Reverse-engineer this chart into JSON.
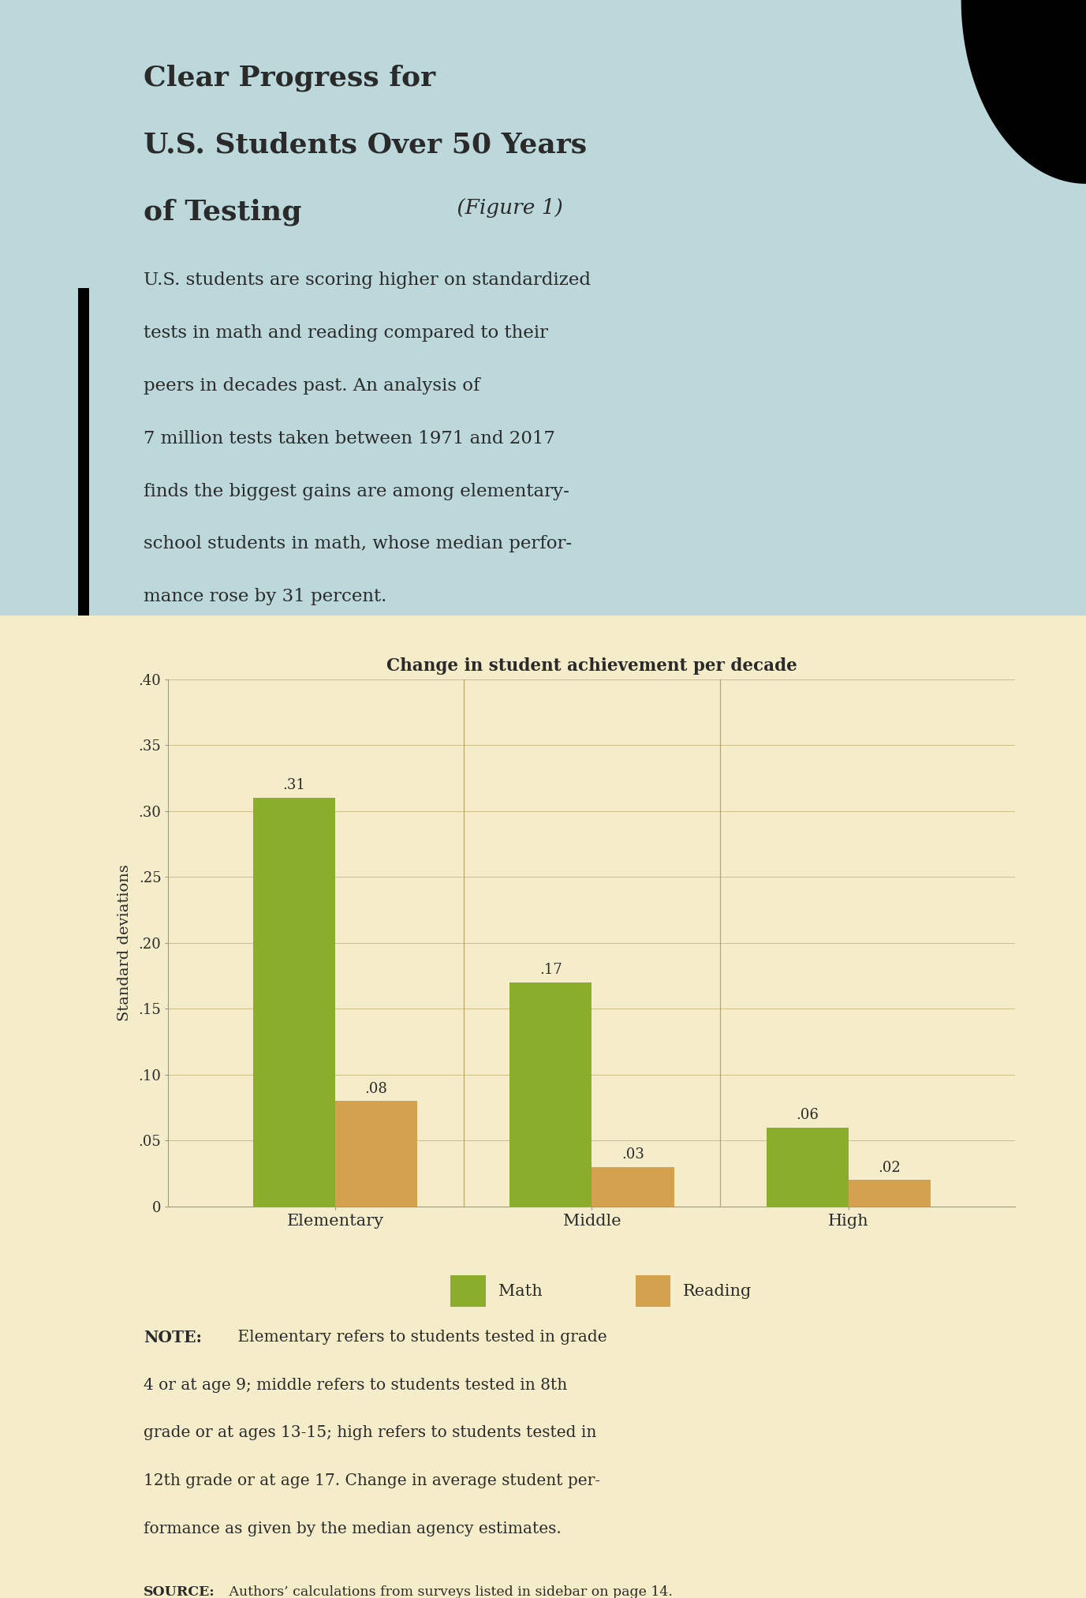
{
  "title_line1": "Clear Progress for",
  "title_line2": "U.S. Students Over 50 Years",
  "title_line3_bold": "of Testing",
  "title_line3_italic": " (Figure 1)",
  "subtitle_lines": [
    "U.S. students are scoring higher on standardized",
    "tests in math and reading compared to their",
    "peers in decades past. An analysis of",
    "7 million tests taken between 1971 and 2017",
    "finds the biggest gains are among elementary-",
    "school students in math, whose median perfor-",
    "mance rose by 31 percent."
  ],
  "chart_title": "Change in student achievement per decade",
  "categories": [
    "Elementary",
    "Middle",
    "High"
  ],
  "math_values": [
    0.31,
    0.17,
    0.06
  ],
  "reading_values": [
    0.08,
    0.03,
    0.02
  ],
  "math_labels": [
    ".31",
    ".17",
    ".06"
  ],
  "reading_labels": [
    ".08",
    ".03",
    ".02"
  ],
  "math_color": "#8aad2b",
  "reading_color": "#d4a24e",
  "ylabel": "Standard deviations",
  "ylim": [
    0,
    0.4
  ],
  "yticks": [
    0,
    0.05,
    0.1,
    0.15,
    0.2,
    0.25,
    0.3,
    0.35,
    0.4
  ],
  "ytick_labels": [
    "0",
    ".05",
    ".10",
    ".15",
    ".20",
    ".25",
    ".30",
    ".35",
    ".40"
  ],
  "header_bg": "#bcd8db",
  "chart_bg": "#f5edca",
  "note_bold": "NOTE:",
  "note_text": " Elementary refers to students tested in grade 4 or at age 9; middle refers to students tested in 8th grade or at ages 13-15; high refers to students tested in 12th grade or at age 17. Change in average student per-formance as given by the median agency estimates.",
  "note_lines": [
    "NOTE: Elementary refers to students tested in grade",
    "4 or at age 9; middle refers to students tested in 8th",
    "grade or at ages 13-15; high refers to students tested in",
    "12th grade or at age 17. Change in average student per-",
    "formance as given by the median agency estimates."
  ],
  "source_bold": "SOURCE:",
  "source_text": " Authors’ calculations from surveys listed in sidebar on page 14.",
  "dark_color": "#2a2a2a",
  "bar_width": 0.32
}
